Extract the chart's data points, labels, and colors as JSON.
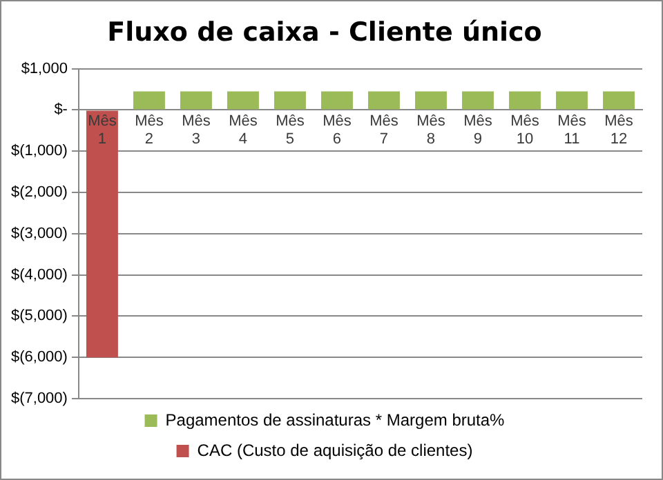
{
  "chart_data": {
    "type": "bar",
    "title": "Fluxo de caixa - Cliente único",
    "categories": [
      "Mês 1",
      "Mês 2",
      "Mês 3",
      "Mês 4",
      "Mês 5",
      "Mês 6",
      "Mês 7",
      "Mês 8",
      "Mês 9",
      "Mês 10",
      "Mês 11",
      "Mês 12"
    ],
    "series": [
      {
        "name": "Pagamentos de assinaturas * Margem bruta%",
        "color": "#9bbb59",
        "values": [
          null,
          450,
          450,
          450,
          450,
          450,
          450,
          450,
          450,
          450,
          450,
          450
        ]
      },
      {
        "name": "CAC (Custo de aquisição de clientes)",
        "color": "#c0504d",
        "values": [
          -6000,
          null,
          null,
          null,
          null,
          null,
          null,
          null,
          null,
          null,
          null,
          null
        ]
      }
    ],
    "stacked": true,
    "ylim": [
      -7000,
      1000
    ],
    "yticks": [
      {
        "value": 1000,
        "label": "$1,000"
      },
      {
        "value": 0,
        "label": "$-"
      },
      {
        "value": -1000,
        "label": "$(1,000)"
      },
      {
        "value": -2000,
        "label": "$(2,000)"
      },
      {
        "value": -3000,
        "label": "$(3,000)"
      },
      {
        "value": -4000,
        "label": "$(4,000)"
      },
      {
        "value": -5000,
        "label": "$(5,000)"
      },
      {
        "value": -6000,
        "label": "$(6,000)"
      },
      {
        "value": -7000,
        "label": "$(7,000)"
      }
    ],
    "grid": "y",
    "legend": "bottom"
  }
}
